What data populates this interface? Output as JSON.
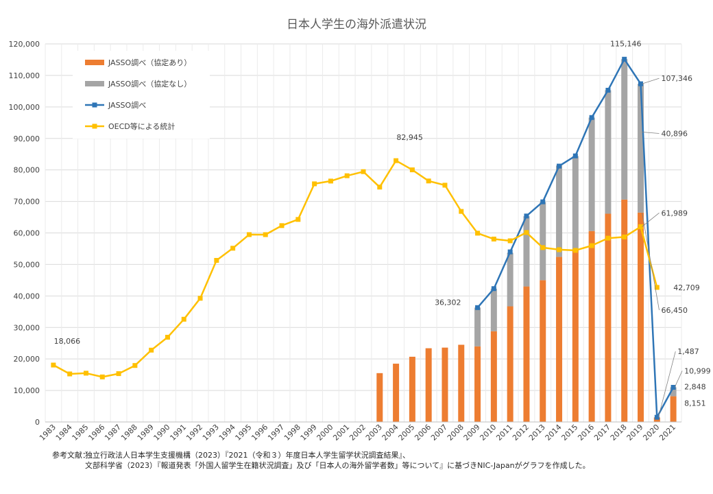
{
  "chart_data": {
    "type": "bar",
    "title": "日本人学生の海外派遣状況",
    "ylim": [
      0,
      120000
    ],
    "yticks": [
      "0",
      "10,000",
      "20,000",
      "30,000",
      "40,000",
      "50,000",
      "60,000",
      "70,000",
      "80,000",
      "90,000",
      "100,000",
      "110,000",
      "120,000"
    ],
    "grid": true,
    "legend_position": "top-left",
    "categories": [
      "1983",
      "1984",
      "1985",
      "1986",
      "1987",
      "1988",
      "1989",
      "1990",
      "1991",
      "1992",
      "1993",
      "1994",
      "1995",
      "1996",
      "1997",
      "1998",
      "1999",
      "2000",
      "2001",
      "2002",
      "2003",
      "2004",
      "2005",
      "2006",
      "2007",
      "2008",
      "2009",
      "2010",
      "2011",
      "2012",
      "2013",
      "2014",
      "2015",
      "2016",
      "2017",
      "2018",
      "2019",
      "2020",
      "2021"
    ],
    "series": [
      {
        "name": "JASSO調べ（協定あり）",
        "kind": "stacked-bar",
        "color": "#ED7D31",
        "values": [
          null,
          null,
          null,
          null,
          null,
          null,
          null,
          null,
          null,
          null,
          null,
          null,
          null,
          null,
          null,
          null,
          null,
          null,
          null,
          null,
          15500,
          18500,
          20700,
          23400,
          23600,
          24500,
          24000,
          28800,
          36700,
          43000,
          45000,
          52400,
          54500,
          60600,
          66100,
          70600,
          66450,
          1400,
          8151
        ]
      },
      {
        "name": "JASSO調べ（協定なし）",
        "kind": "stacked-bar",
        "color": "#A5A5A5",
        "values": [
          null,
          null,
          null,
          null,
          null,
          null,
          null,
          null,
          null,
          null,
          null,
          null,
          null,
          null,
          null,
          null,
          null,
          null,
          null,
          null,
          null,
          null,
          null,
          null,
          null,
          null,
          12302,
          13500,
          17000,
          22300,
          24800,
          29000,
          29900,
          36000,
          39200,
          44546,
          40896,
          87,
          2848
        ]
      },
      {
        "name": "JASSO調べ",
        "kind": "line",
        "color": "#2E75B6",
        "values": [
          null,
          null,
          null,
          null,
          null,
          null,
          null,
          null,
          null,
          null,
          null,
          null,
          null,
          null,
          null,
          null,
          null,
          null,
          null,
          null,
          null,
          null,
          null,
          null,
          null,
          null,
          36302,
          42320,
          53991,
          65373,
          69869,
          81219,
          84456,
          96641,
          105301,
          115146,
          107346,
          1487,
          10999
        ]
      },
      {
        "name": "OECD等による統計",
        "kind": "line",
        "color": "#FFC000",
        "values": [
          18066,
          15246,
          15485,
          14297,
          15335,
          17926,
          22798,
          26893,
          32609,
          39258,
          51295,
          55145,
          59468,
          59460,
          62324,
          64284,
          75586,
          76464,
          78151,
          79455,
          74551,
          82945,
          80023,
          76492,
          75156,
          66833,
          59923,
          58060,
          57501,
          60138,
          55350,
          54676,
          54466,
          55969,
          58347,
          58720,
          61989,
          42709,
          null
        ]
      }
    ],
    "data_labels": [
      {
        "text": "18,066"
      },
      {
        "text": "82,945"
      },
      {
        "text": "115,146"
      },
      {
        "text": "107,346"
      },
      {
        "text": "40,896"
      },
      {
        "text": "61,989"
      },
      {
        "text": "36,302"
      },
      {
        "text": "42,709"
      },
      {
        "text": "66,450"
      },
      {
        "text": "1,487"
      },
      {
        "text": "10,999"
      },
      {
        "text": "2,848"
      },
      {
        "text": "8,151"
      }
    ]
  },
  "footer": {
    "label": "参考文献：",
    "line1": "独立行政法人日本学生支援機構（2023）『2021（令和３）年度日本人学生留学状況調査結果』、",
    "line2": "文部科学省（2023）『報道発表「外国人留学生在籍状況調査」及び「日本人の海外留学者数」等について』に基づきNIC-Japanがグラフを作成した。"
  }
}
